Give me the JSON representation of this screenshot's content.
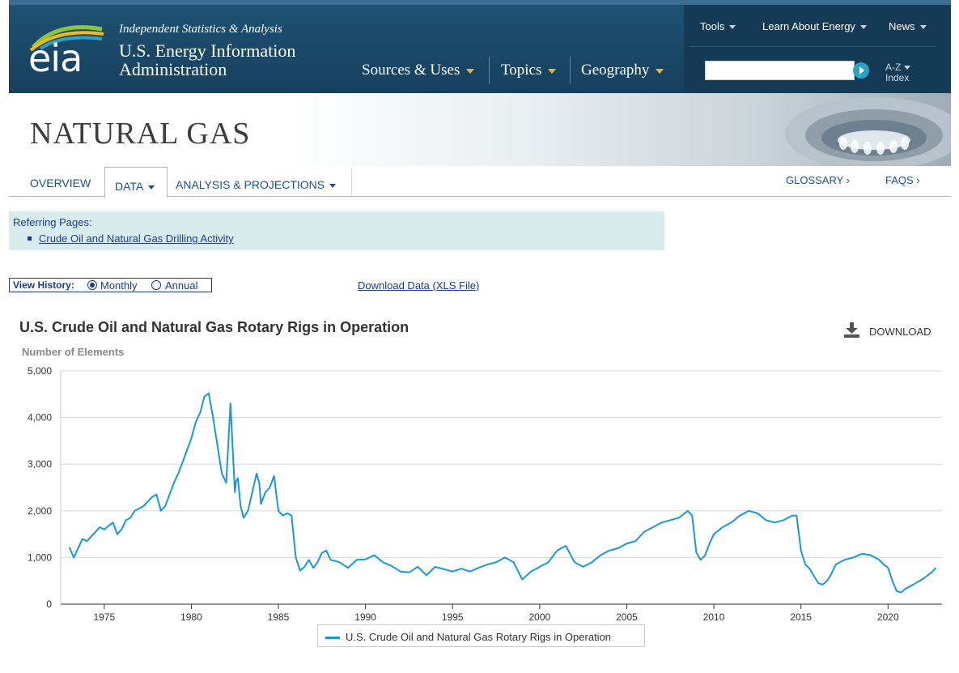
{
  "header": {
    "logo_text": "eia",
    "tagline": "Independent Statistics & Analysis",
    "agency_line1": "U.S. Energy Information",
    "agency_line2": "Administration",
    "nav": [
      "Sources & Uses",
      "Topics",
      "Geography"
    ],
    "top_links": [
      "Tools",
      "Learn About Energy",
      "News"
    ],
    "search_placeholder": "",
    "az_line1": "A-Z",
    "az_line2": "Index"
  },
  "page": {
    "title": "NATURAL GAS",
    "tabs": [
      "OVERVIEW",
      "DATA",
      "ANALYSIS & PROJECTIONS"
    ],
    "right_links": [
      "GLOSSARY ›",
      "FAQS ›"
    ]
  },
  "referring": {
    "heading": "Referring Pages:",
    "link": "Crude Oil and Natural Gas Drilling Activity"
  },
  "view_history": {
    "label": "View History:",
    "options": [
      "Monthly",
      "Annual"
    ],
    "selected": "Monthly",
    "download_link": "Download Data (XLS File)"
  },
  "chart_ui": {
    "download_label": "DOWNLOAD"
  },
  "colors": {
    "series": "#1a98d5",
    "header": "#1e5173",
    "link": "#1e3b8a"
  },
  "chart_data": {
    "type": "line",
    "title": "U.S. Crude Oil and Natural Gas Rotary Rigs in Operation",
    "ylabel": "Number of Elements",
    "xlabel": "",
    "ylim": [
      0,
      5000
    ],
    "xlim": [
      1972.5,
      2023.1
    ],
    "yticks": [
      0,
      1000,
      2000,
      3000,
      4000,
      5000
    ],
    "ytick_labels": [
      "0",
      "1,000",
      "2,000",
      "3,000",
      "4,000",
      "5,000"
    ],
    "xticks": [
      1975,
      1980,
      1985,
      1990,
      1995,
      2000,
      2005,
      2010,
      2015,
      2020
    ],
    "grid": true,
    "legend": "bottom-center",
    "series": [
      {
        "name": "U.S. Crude Oil and Natural Gas Rotary Rigs in Operation",
        "x": [
          1973.0,
          1973.25,
          1973.5,
          1973.75,
          1974.0,
          1974.25,
          1974.5,
          1974.75,
          1975.0,
          1975.25,
          1975.5,
          1975.75,
          1976.0,
          1976.25,
          1976.5,
          1976.75,
          1977.0,
          1977.25,
          1977.5,
          1977.75,
          1978.0,
          1978.25,
          1978.5,
          1978.75,
          1979.0,
          1979.25,
          1979.5,
          1979.75,
          1980.0,
          1980.25,
          1980.5,
          1980.75,
          1981.0,
          1981.25,
          1981.5,
          1981.75,
          1982.0,
          1982.25,
          1982.5,
          1982.58,
          1982.67,
          1982.83,
          1983.0,
          1983.25,
          1983.5,
          1983.75,
          1983.9,
          1984.0,
          1984.25,
          1984.5,
          1984.75,
          1985.0,
          1985.25,
          1985.5,
          1985.75,
          1986.0,
          1986.25,
          1986.5,
          1986.75,
          1987.0,
          1987.25,
          1987.5,
          1987.75,
          1988.0,
          1988.5,
          1989.0,
          1989.5,
          1990.0,
          1990.5,
          1991.0,
          1991.5,
          1992.0,
          1992.5,
          1993.0,
          1993.5,
          1994.0,
          1994.5,
          1995.0,
          1995.5,
          1996.0,
          1996.5,
          1997.0,
          1997.5,
          1998.0,
          1998.5,
          1999.0,
          1999.5,
          2000.0,
          2000.5,
          2001.0,
          2001.5,
          2002.0,
          2002.5,
          2003.0,
          2003.5,
          2004.0,
          2004.5,
          2005.0,
          2005.5,
          2006.0,
          2006.5,
          2007.0,
          2007.5,
          2008.0,
          2008.5,
          2008.75,
          2009.0,
          2009.25,
          2009.5,
          2009.75,
          2010.0,
          2010.5,
          2011.0,
          2011.5,
          2012.0,
          2012.5,
          2013.0,
          2013.5,
          2014.0,
          2014.5,
          2014.75,
          2015.0,
          2015.25,
          2015.5,
          2015.75,
          2016.0,
          2016.25,
          2016.5,
          2016.75,
          2017.0,
          2017.5,
          2018.0,
          2018.5,
          2019.0,
          2019.5,
          2019.75,
          2020.0,
          2020.25,
          2020.5,
          2020.75,
          2021.0,
          2021.5,
          2022.0,
          2022.5,
          2022.75
        ],
        "values": [
          1220,
          1000,
          1200,
          1400,
          1350,
          1450,
          1550,
          1650,
          1600,
          1680,
          1750,
          1500,
          1600,
          1800,
          1850,
          2000,
          2050,
          2100,
          2200,
          2300,
          2350,
          2000,
          2100,
          2350,
          2600,
          2800,
          3050,
          3300,
          3550,
          3900,
          4100,
          4450,
          4520,
          4000,
          3400,
          2800,
          2600,
          4300,
          2400,
          2650,
          2700,
          2100,
          1850,
          2000,
          2400,
          2800,
          2600,
          2150,
          2400,
          2500,
          2750,
          2000,
          1900,
          1950,
          1900,
          1000,
          720,
          800,
          950,
          780,
          900,
          1100,
          1150,
          950,
          900,
          780,
          950,
          960,
          1050,
          900,
          820,
          700,
          680,
          800,
          620,
          800,
          750,
          700,
          760,
          700,
          780,
          850,
          900,
          1000,
          900,
          530,
          700,
          800,
          900,
          1150,
          1250,
          900,
          800,
          900,
          1050,
          1150,
          1200,
          1300,
          1350,
          1550,
          1650,
          1750,
          1800,
          1850,
          2000,
          1900,
          1100,
          950,
          1050,
          1300,
          1500,
          1650,
          1750,
          1900,
          2000,
          1950,
          1800,
          1750,
          1800,
          1900,
          1900,
          1150,
          850,
          760,
          600,
          450,
          420,
          500,
          650,
          850,
          950,
          1000,
          1080,
          1050,
          950,
          850,
          780,
          500,
          280,
          250,
          330,
          430,
          540,
          680,
          780
        ]
      }
    ]
  }
}
